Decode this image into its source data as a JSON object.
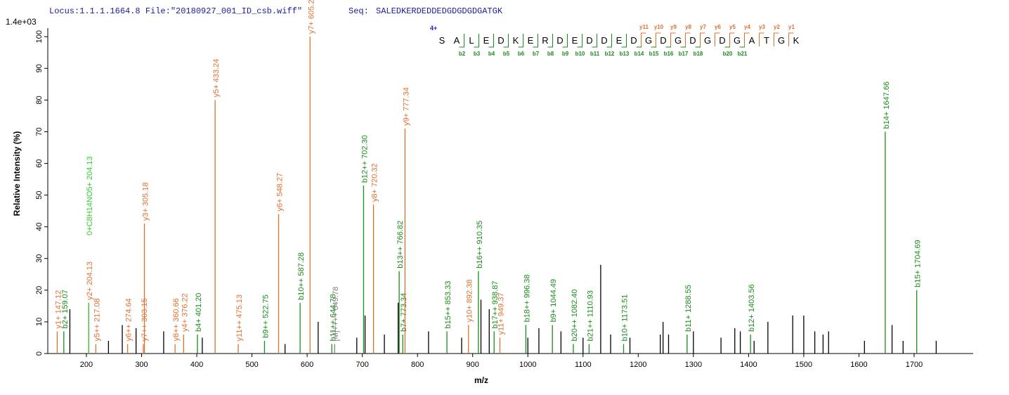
{
  "header": {
    "locus": "Locus:1.1.1.1664.8 File:\"20180927_001_ID_csb.wiff\"",
    "seq_label": "Seq:",
    "seq": "SALEDKERDEDDEDGDGDGDGATGK"
  },
  "sequence_panel": {
    "charge": "4+",
    "residues": [
      "S",
      "A",
      "L",
      "E",
      "D",
      "K",
      "E",
      "R",
      "D",
      "E",
      "D",
      "D",
      "E",
      "D",
      "G",
      "D",
      "G",
      "D",
      "G",
      "D",
      "G",
      "A",
      "T",
      "G",
      "K"
    ],
    "b_ions": [
      "b2",
      "b3",
      "b4",
      "b5",
      "b6",
      "b7",
      "b8",
      "b9",
      "b10",
      "b11",
      "b12",
      "b13",
      "b14",
      "b15",
      "b16",
      "b17",
      "b18",
      "b20",
      "b21"
    ],
    "y_ions": [
      "y11",
      "y10",
      "y9",
      "y8",
      "y7",
      "y6",
      "y5",
      "y4",
      "y3",
      "y2",
      "y1"
    ],
    "b_color": "#1a8c1a",
    "y_color": "#e07030",
    "charge_color": "#2020c0"
  },
  "chart_data": {
    "type": "stem",
    "scale_label": "1.4e+03",
    "ylabel": "Relative   Intensity (%)",
    "xlabel": "m/z",
    "xlim": [
      130,
      1807
    ],
    "ylim": [
      0,
      102.7
    ],
    "xticks": [
      200,
      300,
      400,
      500,
      600,
      700,
      800,
      900,
      1000,
      1100,
      1200,
      1300,
      1400,
      1500,
      1600,
      1700
    ],
    "yticks": [
      0,
      10,
      20,
      30,
      40,
      50,
      60,
      70,
      80,
      90,
      100
    ],
    "peaks": [
      {
        "mz": 147.12,
        "intensity": 7,
        "label": "y1+ 147.12",
        "color": "#e07030"
      },
      {
        "mz": 159.07,
        "intensity": 7,
        "label": "b2+ 159.07",
        "color": "#1a8c1a"
      },
      {
        "mz": 204.13,
        "intensity": 16,
        "label": "y2+ 204.13",
        "color": "#e07030"
      },
      {
        "mz": 204.13,
        "intensity": 16,
        "label": "0+C8H14NO5+ 204.13",
        "color": "#33cc33"
      },
      {
        "mz": 217.08,
        "intensity": 3,
        "label": "y5++ 217.08",
        "color": "#e07030"
      },
      {
        "mz": 274.64,
        "intensity": 3,
        "label": "y6++ 274.64",
        "color": "#e07030"
      },
      {
        "mz": 303.15,
        "intensity": 3,
        "label": "y7++ 303.15",
        "color": "#e07030"
      },
      {
        "mz": 305.18,
        "intensity": 41,
        "label": "y3+ 305.18",
        "color": "#e07030"
      },
      {
        "mz": 360.66,
        "intensity": 3,
        "label": "y8++ 360.66",
        "color": "#e07030"
      },
      {
        "mz": 376.22,
        "intensity": 6,
        "label": "y4+ 376.22",
        "color": "#e07030"
      },
      {
        "mz": 401.2,
        "intensity": 6,
        "label": "b4+ 401.20",
        "color": "#1a8c1a"
      },
      {
        "mz": 433.24,
        "intensity": 80,
        "label": "y5+ 433.24",
        "color": "#e07030"
      },
      {
        "mz": 475.13,
        "intensity": 3,
        "label": "y11++ 475.13",
        "color": "#e07030"
      },
      {
        "mz": 522.75,
        "intensity": 4,
        "label": "b9++ 522.75",
        "color": "#1a8c1a"
      },
      {
        "mz": 548.27,
        "intensity": 44,
        "label": "y6+ 548.27",
        "color": "#e07030"
      },
      {
        "mz": 587.28,
        "intensity": 16,
        "label": "b10++ 587.28",
        "color": "#1a8c1a"
      },
      {
        "mz": 605.29,
        "intensity": 100,
        "label": "y7+ 605.29",
        "color": "#e07030"
      },
      {
        "mz": 644.78,
        "intensity": 3,
        "label": "b11++ 644.78",
        "color": "#1a8c1a"
      },
      {
        "mz": 649.78,
        "intensity": 3,
        "label": "[M]++++ 649.78",
        "color": "#808080"
      },
      {
        "mz": 702.3,
        "intensity": 53,
        "label": "b12++ 702.30",
        "color": "#1a8c1a"
      },
      {
        "mz": 720.32,
        "intensity": 47,
        "label": "y8+ 720.32",
        "color": "#e07030"
      },
      {
        "mz": 766.82,
        "intensity": 26,
        "label": "b13++ 766.82",
        "color": "#1a8c1a"
      },
      {
        "mz": 773.34,
        "intensity": 6,
        "label": "b7+ 773.34",
        "color": "#1a8c1a"
      },
      {
        "mz": 777.34,
        "intensity": 71,
        "label": "y9+ 777.34",
        "color": "#e07030"
      },
      {
        "mz": 853.33,
        "intensity": 7,
        "label": "b15++ 853.33",
        "color": "#1a8c1a"
      },
      {
        "mz": 892.38,
        "intensity": 9,
        "label": "y10+ 892.38",
        "color": "#e07030"
      },
      {
        "mz": 910.35,
        "intensity": 26,
        "label": "b16++ 910.35",
        "color": "#1a8c1a"
      },
      {
        "mz": 938.87,
        "intensity": 7,
        "label": "b17++ 938.87",
        "color": "#1a8c1a"
      },
      {
        "mz": 949.37,
        "intensity": 5,
        "label": "y11+ 949.37",
        "color": "#e07030"
      },
      {
        "mz": 996.38,
        "intensity": 9,
        "label": "b18++ 996.38",
        "color": "#1a8c1a"
      },
      {
        "mz": 1044.49,
        "intensity": 9,
        "label": "b9+ 1044.49",
        "color": "#1a8c1a"
      },
      {
        "mz": 1082.4,
        "intensity": 3,
        "label": "b20++ 1082.40",
        "color": "#1a8c1a"
      },
      {
        "mz": 1110.93,
        "intensity": 3,
        "label": "b21++ 1110.93",
        "color": "#1a8c1a"
      },
      {
        "mz": 1173.51,
        "intensity": 3,
        "label": "b10+ 1173.51",
        "color": "#1a8c1a"
      },
      {
        "mz": 1288.55,
        "intensity": 6,
        "label": "b11+ 1288.55",
        "color": "#1a8c1a"
      },
      {
        "mz": 1403.56,
        "intensity": 6,
        "label": "b12+ 1403.56",
        "color": "#1a8c1a"
      },
      {
        "mz": 1647.66,
        "intensity": 70,
        "label": "b14+ 1647.66",
        "color": "#1a8c1a"
      },
      {
        "mz": 1704.69,
        "intensity": 20,
        "label": "b15+ 1704.69",
        "color": "#1a8c1a"
      },
      {
        "mz": 170,
        "intensity": 14,
        "color": "#000000"
      },
      {
        "mz": 240,
        "intensity": 4,
        "color": "#000000"
      },
      {
        "mz": 265,
        "intensity": 9,
        "color": "#000000"
      },
      {
        "mz": 290,
        "intensity": 8,
        "color": "#000000"
      },
      {
        "mz": 340,
        "intensity": 7,
        "color": "#000000"
      },
      {
        "mz": 410,
        "intensity": 5,
        "color": "#000000"
      },
      {
        "mz": 560,
        "intensity": 3,
        "color": "#000000"
      },
      {
        "mz": 620,
        "intensity": 10,
        "color": "#000000"
      },
      {
        "mz": 690,
        "intensity": 5,
        "color": "#000000"
      },
      {
        "mz": 705,
        "intensity": 12,
        "color": "#000000"
      },
      {
        "mz": 740,
        "intensity": 6,
        "color": "#000000"
      },
      {
        "mz": 765,
        "intensity": 16,
        "color": "#000000"
      },
      {
        "mz": 820,
        "intensity": 7,
        "color": "#000000"
      },
      {
        "mz": 880,
        "intensity": 5,
        "color": "#000000"
      },
      {
        "mz": 915,
        "intensity": 17,
        "color": "#000000"
      },
      {
        "mz": 930,
        "intensity": 14,
        "color": "#000000"
      },
      {
        "mz": 1000,
        "intensity": 5,
        "color": "#000000"
      },
      {
        "mz": 1020,
        "intensity": 8,
        "color": "#000000"
      },
      {
        "mz": 1060,
        "intensity": 7,
        "color": "#000000"
      },
      {
        "mz": 1100,
        "intensity": 5,
        "color": "#000000"
      },
      {
        "mz": 1132,
        "intensity": 28,
        "color": "#000000"
      },
      {
        "mz": 1150,
        "intensity": 6,
        "color": "#000000"
      },
      {
        "mz": 1185,
        "intensity": 5,
        "color": "#000000"
      },
      {
        "mz": 1240,
        "intensity": 6,
        "color": "#000000"
      },
      {
        "mz": 1245,
        "intensity": 10,
        "color": "#000000"
      },
      {
        "mz": 1255,
        "intensity": 6,
        "color": "#000000"
      },
      {
        "mz": 1300,
        "intensity": 7,
        "color": "#000000"
      },
      {
        "mz": 1350,
        "intensity": 5,
        "color": "#000000"
      },
      {
        "mz": 1375,
        "intensity": 8,
        "color": "#000000"
      },
      {
        "mz": 1385,
        "intensity": 7,
        "color": "#000000"
      },
      {
        "mz": 1410,
        "intensity": 4,
        "color": "#000000"
      },
      {
        "mz": 1435,
        "intensity": 10,
        "color": "#000000"
      },
      {
        "mz": 1480,
        "intensity": 12,
        "color": "#000000"
      },
      {
        "mz": 1500,
        "intensity": 12,
        "color": "#000000"
      },
      {
        "mz": 1520,
        "intensity": 7,
        "color": "#000000"
      },
      {
        "mz": 1535,
        "intensity": 6,
        "color": "#000000"
      },
      {
        "mz": 1545,
        "intensity": 7,
        "color": "#000000"
      },
      {
        "mz": 1610,
        "intensity": 4,
        "color": "#000000"
      },
      {
        "mz": 1660,
        "intensity": 9,
        "color": "#000000"
      },
      {
        "mz": 1680,
        "intensity": 4,
        "color": "#000000"
      },
      {
        "mz": 1740,
        "intensity": 4,
        "color": "#000000"
      }
    ]
  }
}
